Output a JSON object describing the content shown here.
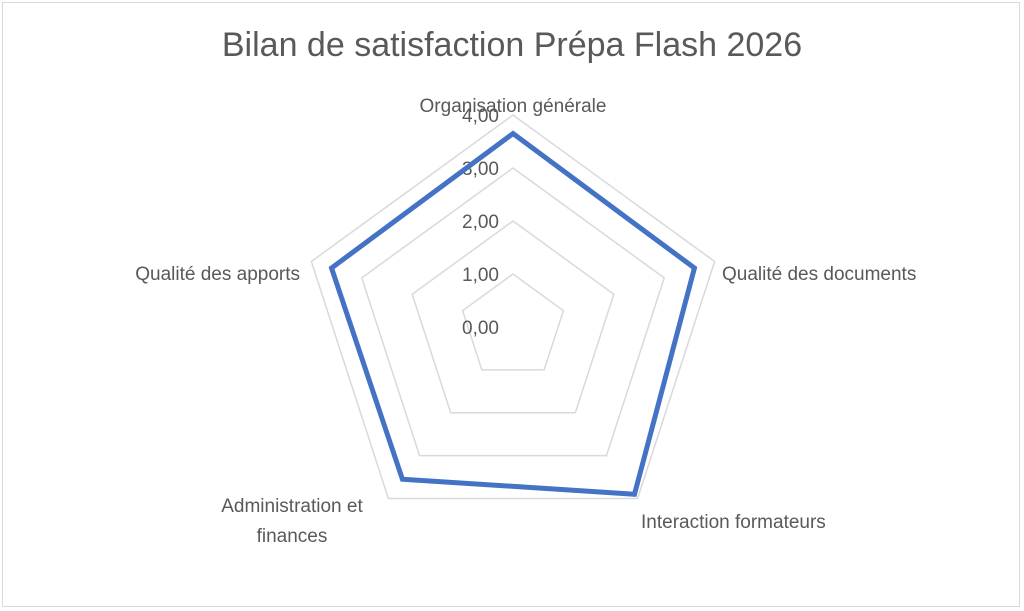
{
  "chart_data": {
    "type": "radar",
    "title": "Bilan de satisfaction Prépa Flash 2026",
    "categories": [
      "Organisation générale",
      "Qualité des documents",
      "Interaction formateurs",
      "Administration et finances",
      "Qualité des apports"
    ],
    "series": [
      {
        "values": [
          3.65,
          3.6,
          3.9,
          3.55,
          3.6
        ]
      }
    ],
    "rlim": [
      0,
      4
    ],
    "ticks": [
      "0,00",
      "1,00",
      "2,00",
      "3,00",
      "4,00"
    ],
    "grid": true,
    "legend": "none",
    "colors": {
      "series": "#4472c4",
      "grid": "#d9d9d9",
      "text": "#595959"
    }
  }
}
